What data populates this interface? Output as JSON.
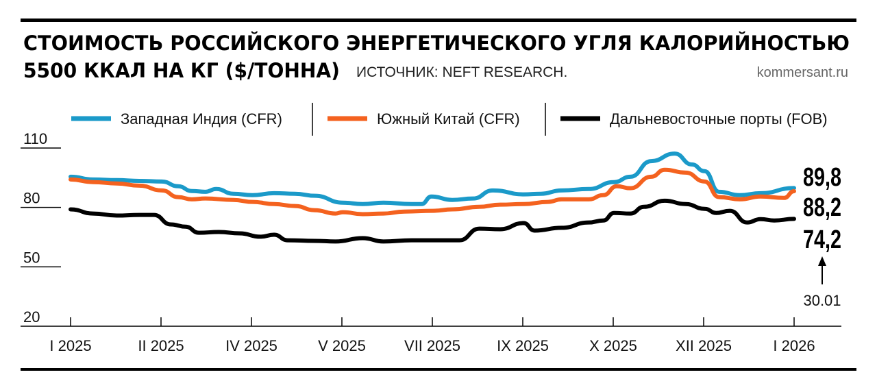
{
  "chart_data": {
    "type": "line",
    "title_line1": "СТОИМОСТЬ РОССИЙСКОГО ЭНЕРГЕТИЧЕСКОГО УГЛЯ КАЛОРИЙНОСТЬЮ",
    "title_line2": "5500 ККАЛ НА КГ ($/ТОННА)",
    "source": "ИСТОЧНИК: NEFT RESEARCH.",
    "site": "kommersant.ru",
    "xlabel": "",
    "ylabel": "",
    "categories": [
      "I 2025",
      "II 2025",
      "IV 2025",
      "V 2025",
      "VII 2025",
      "IX 2025",
      "X 2025",
      "XII 2025",
      "I 2026"
    ],
    "yticks": [
      110,
      80,
      50,
      20
    ],
    "ylim": [
      20,
      110
    ],
    "grid": false,
    "legend_placement": "top",
    "end_date_label": "30.01",
    "series": [
      {
        "name": "Западная Индия (CFR)",
        "color": "#1b9ac9",
        "end_label": "89,8",
        "x": [
          0,
          0.25,
          0.51,
          0.76,
          1.01,
          1.19,
          1.34,
          1.49,
          1.61,
          1.8,
          2.01,
          2.25,
          2.48,
          2.7,
          3.01,
          3.23,
          3.46,
          3.77,
          3.88,
          3.99,
          4.22,
          4.45,
          4.67,
          5.01,
          5.2,
          5.43,
          5.73,
          6.01,
          6.19,
          6.42,
          6.68,
          6.87,
          7.01,
          7.17,
          7.4,
          7.63,
          8
        ],
        "y": [
          95.5,
          94.1,
          93.8,
          93.4,
          93.1,
          90.7,
          88.3,
          87.9,
          89.3,
          86.9,
          86.2,
          87.2,
          86.9,
          85.9,
          82.4,
          81.7,
          82.4,
          81.7,
          81.7,
          85.5,
          83.8,
          84.5,
          88.6,
          86.6,
          86.9,
          88.6,
          89.3,
          92.8,
          95.5,
          103.4,
          107.2,
          101.7,
          98.3,
          87.9,
          86.2,
          87.2,
          89.8
        ]
      },
      {
        "name": "Южный Китай (CFR)",
        "color": "#f4621f",
        "end_label": "88,2",
        "x": [
          0,
          0.25,
          0.51,
          0.76,
          1.01,
          1.19,
          1.34,
          1.49,
          1.8,
          2.01,
          2.25,
          2.48,
          2.7,
          2.93,
          3.01,
          3.23,
          3.46,
          3.69,
          4.01,
          4.22,
          4.52,
          4.75,
          5.01,
          5.28,
          5.43,
          5.73,
          5.89,
          6.04,
          6.19,
          6.42,
          6.57,
          6.8,
          7.01,
          7.17,
          7.4,
          7.63,
          7.89,
          8
        ],
        "y": [
          94.1,
          92.8,
          92.1,
          91.0,
          88.6,
          85.2,
          84.1,
          84.5,
          83.8,
          82.8,
          81.7,
          80.7,
          78.6,
          76.9,
          77.6,
          76.6,
          76.9,
          77.9,
          78.3,
          79.0,
          80.3,
          81.4,
          81.7,
          82.8,
          84.1,
          84.1,
          86.2,
          90.7,
          89.7,
          95.5,
          99.0,
          97.6,
          93.1,
          85.2,
          84.1,
          85.5,
          84.8,
          88.2
        ]
      },
      {
        "name": "Дальневосточные порты (FOB)",
        "color": "#000000",
        "end_label": "74,2",
        "x": [
          0,
          0.25,
          0.51,
          0.76,
          0.92,
          1.11,
          1.27,
          1.42,
          1.64,
          1.87,
          2.1,
          2.25,
          2.4,
          2.7,
          2.93,
          3.23,
          3.46,
          3.77,
          4.07,
          4.3,
          4.52,
          4.75,
          5.01,
          5.13,
          5.43,
          5.73,
          5.89,
          6.01,
          6.19,
          6.34,
          6.57,
          6.8,
          7.01,
          7.14,
          7.29,
          7.48,
          7.63,
          7.78,
          8
        ],
        "y": [
          79.0,
          76.9,
          75.9,
          76.2,
          76.2,
          71.4,
          70.3,
          67.2,
          67.6,
          66.9,
          65.2,
          66.2,
          63.4,
          63.1,
          62.8,
          64.5,
          62.8,
          63.4,
          63.4,
          63.4,
          69.3,
          69.0,
          72.1,
          68.3,
          69.7,
          72.4,
          73.4,
          77.2,
          76.9,
          80.3,
          83.4,
          81.7,
          79.3,
          77.2,
          78.3,
          72.4,
          74.1,
          73.4,
          74.2
        ]
      }
    ]
  }
}
